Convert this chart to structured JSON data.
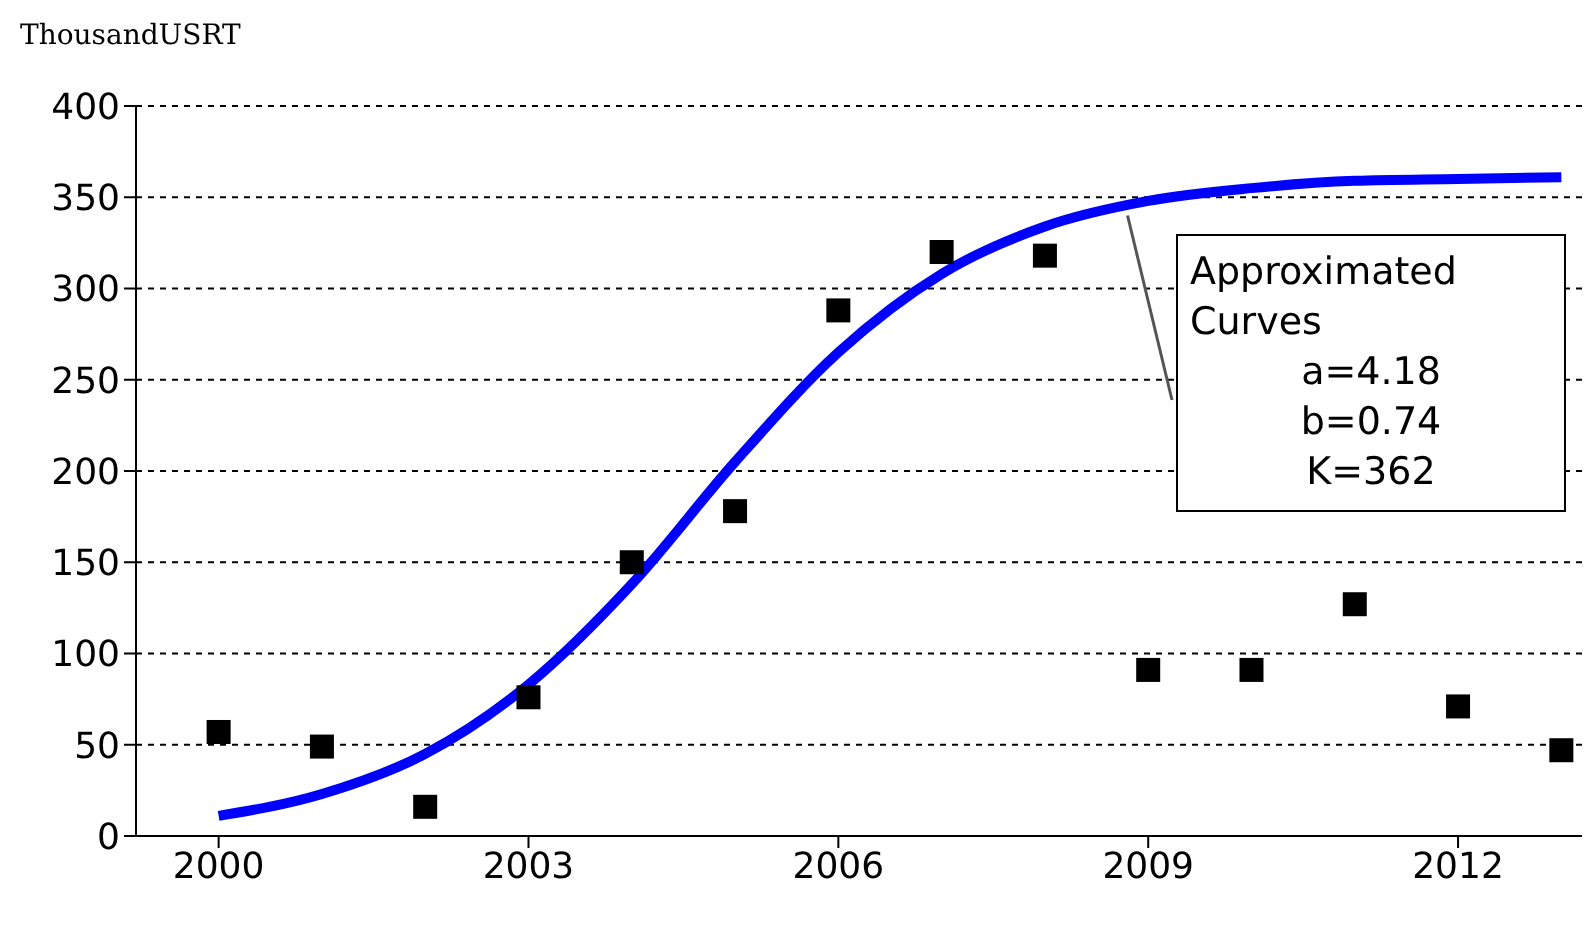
{
  "chart_data": {
    "type": "scatter",
    "ylabel": "ThousandUSRT",
    "xlim": [
      1999.2,
      2013.2
    ],
    "xticks": [
      2000,
      2003,
      2006,
      2009,
      2012
    ],
    "ylim": [
      0,
      400
    ],
    "yticks": [
      0,
      50,
      100,
      150,
      200,
      250,
      300,
      350,
      400
    ],
    "grid": "y",
    "annotations": [
      {
        "text": "Approximated Curves",
        "x": 2008.8,
        "y": 340
      },
      "a=4.18",
      "b=0.74",
      "K=362"
    ],
    "series": [
      {
        "type": "scatter",
        "marker": "square",
        "color": "#000000",
        "x": [
          2000,
          2001,
          2002,
          2003,
          2004,
          2005,
          2006,
          2007,
          2008,
          2009,
          2010,
          2011,
          2012,
          2013
        ],
        "values": [
          57,
          49,
          16,
          76,
          150,
          178,
          288,
          320,
          318,
          91,
          91,
          127,
          71,
          47
        ]
      },
      {
        "type": "line",
        "marker": "none",
        "color": "#0000ff",
        "x": [
          2000,
          2001,
          2002,
          2003,
          2004,
          2005,
          2006,
          2007,
          2008,
          2009,
          2010,
          2011,
          2012,
          2013
        ],
        "values": [
          11,
          23,
          45,
          83,
          138,
          205,
          265,
          308,
          334,
          348,
          355,
          359,
          360,
          361
        ]
      }
    ]
  }
}
